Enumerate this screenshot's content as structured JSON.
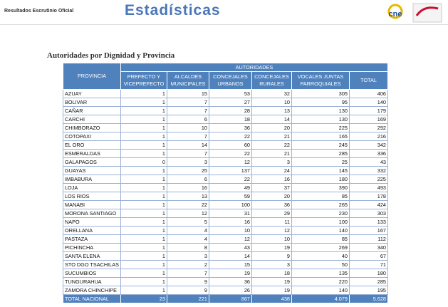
{
  "header": {
    "subtitle": "Resultados Escrutinio Oficial",
    "title": "Estadísticas",
    "logo": "cne"
  },
  "section_title": "Autoridades por Dignidad y Provincia",
  "table": {
    "group_header": "AUTORIDADES",
    "columns": [
      "PROVINCIA",
      "PREFECTO Y VICEPREFECTO",
      "ALCALDES MUNICIPALES",
      "CONCEJALES URBANOS",
      "CONCEJALES RURALES",
      "VOCALES JUNTAS PARROQUIALES",
      "TOTAL"
    ],
    "rows": [
      [
        "AZUAY",
        "1",
        "15",
        "53",
        "32",
        "305",
        "406"
      ],
      [
        "BOLIVAR",
        "1",
        "7",
        "27",
        "10",
        "95",
        "140"
      ],
      [
        "CAÑAR",
        "1",
        "7",
        "28",
        "13",
        "130",
        "179"
      ],
      [
        "CARCHI",
        "1",
        "6",
        "18",
        "14",
        "130",
        "169"
      ],
      [
        "CHIMBORAZO",
        "1",
        "10",
        "36",
        "20",
        "225",
        "292"
      ],
      [
        "COTOPAXI",
        "1",
        "7",
        "22",
        "21",
        "165",
        "216"
      ],
      [
        "EL ORO",
        "1",
        "14",
        "60",
        "22",
        "245",
        "342"
      ],
      [
        "ESMERALDAS",
        "1",
        "7",
        "22",
        "21",
        "285",
        "336"
      ],
      [
        "GALAPAGOS",
        "0",
        "3",
        "12",
        "3",
        "25",
        "43"
      ],
      [
        "GUAYAS",
        "1",
        "25",
        "137",
        "24",
        "145",
        "332"
      ],
      [
        "IMBABURA",
        "1",
        "6",
        "22",
        "16",
        "180",
        "225"
      ],
      [
        "LOJA",
        "1",
        "16",
        "49",
        "37",
        "390",
        "493"
      ],
      [
        "LOS RIOS",
        "1",
        "13",
        "59",
        "20",
        "85",
        "178"
      ],
      [
        "MANABI",
        "1",
        "22",
        "100",
        "36",
        "265",
        "424"
      ],
      [
        "MORONA SANTIAGO",
        "1",
        "12",
        "31",
        "29",
        "230",
        "303"
      ],
      [
        "NAPO",
        "1",
        "5",
        "16",
        "11",
        "100",
        "133"
      ],
      [
        "ORELLANA",
        "1",
        "4",
        "10",
        "12",
        "140",
        "167"
      ],
      [
        "PASTAZA",
        "1",
        "4",
        "12",
        "10",
        "85",
        "112"
      ],
      [
        "PICHINCHA",
        "1",
        "8",
        "43",
        "19",
        "269",
        "340"
      ],
      [
        "SANTA ELENA",
        "1",
        "3",
        "14",
        "9",
        "40",
        "67"
      ],
      [
        "STO DGO TSACHILAS",
        "1",
        "2",
        "15",
        "3",
        "50",
        "71"
      ],
      [
        "SUCUMBIOS",
        "1",
        "7",
        "19",
        "18",
        "135",
        "180"
      ],
      [
        "TUNGURAHUA",
        "1",
        "9",
        "36",
        "19",
        "220",
        "285"
      ],
      [
        "ZAMORA CHINCHIPE",
        "1",
        "9",
        "26",
        "19",
        "140",
        "195"
      ]
    ],
    "total": [
      "TOTAL NACIONAL",
      "23",
      "221",
      "867",
      "438",
      "4.079",
      "5.628"
    ]
  }
}
